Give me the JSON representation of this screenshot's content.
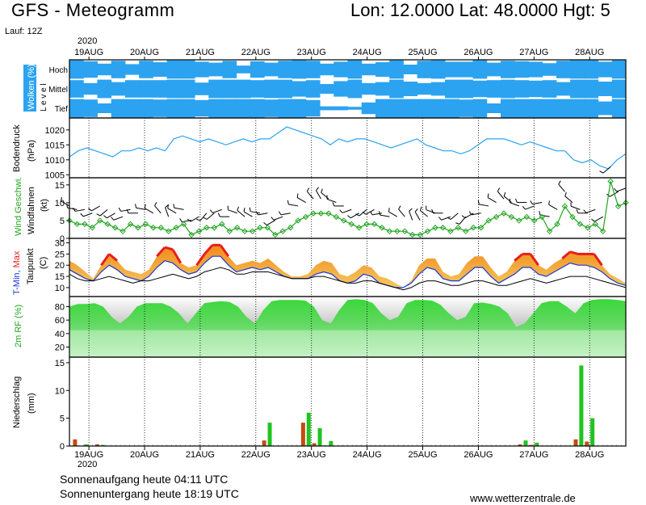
{
  "header": {
    "title": "GFS - Meteogramm",
    "location": "Lon: 12.0000 Lat: 48.0000 Hgt: 5",
    "run": "Lauf: 12Z"
  },
  "footer": {
    "sunrise": "Sonnenaufgang heute 04:11 UTC",
    "sunset": "Sonnenuntergang heute 18:19 UTC",
    "website": "www.wetterzentrale.de"
  },
  "colors": {
    "clouds": "#2ba3f0",
    "pressure_line": "#2ba3f0",
    "wind_speed": "#1fa51f",
    "wind_barb": "#000000",
    "temp_fill_top": "#f08a1a",
    "temp_fill_bottom": "#f5c860",
    "temp_max": "#e81d1d",
    "temp_min": "#1a35d8",
    "dewpoint": "#000000",
    "rh_fill": "#19d219",
    "precip_bar_green": "#1fc41f",
    "precip_bar_red": "#c54a12"
  },
  "chart_data": [
    {
      "type": "area",
      "panel": "clouds",
      "ylabel": "Wolken (%)",
      "ylabel2": "L e v e l",
      "levels": [
        "Hoch",
        "Mittel",
        "Tief"
      ],
      "year": "2020",
      "dates": [
        "19AUG",
        "20AUG",
        "21AUG",
        "22AUG",
        "23AUG",
        "24AUG",
        "25AUG",
        "26AUG",
        "27AUG",
        "28AUG"
      ],
      "cover_hoch": [
        95,
        85,
        60,
        90,
        55,
        90,
        75,
        95,
        95,
        80,
        70,
        90,
        40,
        85,
        70,
        90,
        95,
        90,
        60,
        80,
        95,
        60,
        75,
        95,
        50,
        90,
        95,
        80,
        80,
        95,
        70,
        90,
        85,
        80,
        65,
        90,
        95,
        95,
        80,
        95
      ],
      "cover_mittel": [
        90,
        60,
        95,
        70,
        90,
        90,
        90,
        95,
        95,
        65,
        95,
        95,
        95,
        90,
        95,
        95,
        80,
        90,
        50,
        80,
        95,
        60,
        70,
        95,
        75,
        60,
        70,
        95,
        95,
        85,
        90,
        95,
        90,
        85,
        90,
        70,
        95,
        95,
        75,
        95
      ],
      "cover_tief": [
        95,
        90,
        50,
        95,
        95,
        95,
        90,
        95,
        95,
        85,
        95,
        95,
        95,
        95,
        90,
        95,
        95,
        85,
        20,
        20,
        15,
        60,
        95,
        95,
        95,
        95,
        95,
        95,
        90,
        95,
        50,
        95,
        95,
        95,
        95,
        95,
        95,
        95,
        70,
        95
      ]
    },
    {
      "type": "line",
      "panel": "pressure",
      "ylabel": "Bodendruck",
      "yunit": "(hPa)",
      "ylim": [
        1004,
        1024
      ],
      "yticks": [
        1005,
        1010,
        1015,
        1020
      ],
      "values": [
        1011,
        1013,
        1014,
        1013,
        1012,
        1011,
        1013,
        1013,
        1014,
        1013,
        1014,
        1013,
        1017,
        1018,
        1017,
        1016,
        1017,
        1016,
        1015,
        1016,
        1017,
        1016,
        1017,
        1017,
        1019,
        1021,
        1020,
        1019,
        1018,
        1017,
        1015,
        1017,
        1016,
        1017,
        1017,
        1016,
        1015,
        1014,
        1015,
        1016,
        1017,
        1015,
        1014,
        1013,
        1013,
        1012,
        1013,
        1015,
        1017,
        1017,
        1017,
        1016,
        1015,
        1016,
        1015,
        1014,
        1013,
        1013,
        1010,
        1009,
        1010,
        1008,
        1007,
        1010,
        1012
      ]
    },
    {
      "type": "line",
      "panel": "wind",
      "ylabel": "Wind Geschwi.",
      "ylabel2": "Windfahnen",
      "yunit": "(kt)",
      "ylim": [
        0,
        17
      ],
      "yticks": [
        0,
        5,
        10,
        15
      ],
      "values": [
        5,
        4,
        4,
        3,
        5,
        4,
        3,
        2,
        4,
        3,
        4,
        3,
        3,
        2,
        3,
        4,
        1,
        2,
        3,
        3,
        4,
        2,
        3,
        2,
        2,
        3,
        3,
        1,
        2,
        3,
        5,
        6,
        7,
        7,
        7,
        6,
        5,
        4,
        3,
        4,
        4,
        3,
        2,
        2,
        2,
        1,
        1,
        2,
        3,
        3,
        2,
        3,
        2,
        3,
        3,
        5,
        6,
        7,
        6,
        5,
        6,
        5,
        6,
        2,
        4,
        9,
        6,
        4,
        3,
        4,
        2,
        16,
        9,
        10
      ],
      "wind_dir_deg": [
        300,
        280,
        260,
        250,
        240,
        230,
        240,
        250,
        260,
        270,
        280,
        300,
        320,
        340,
        300,
        280,
        260,
        240,
        220,
        230,
        250,
        270,
        290,
        310,
        300,
        280,
        260,
        240,
        250,
        260,
        280,
        300,
        320,
        330,
        310,
        290,
        270,
        250,
        240,
        230,
        240,
        260,
        280,
        300,
        320,
        340,
        330,
        310,
        290,
        270,
        250,
        230,
        220,
        240,
        260,
        280,
        300,
        320,
        310,
        290,
        270,
        250,
        260,
        280,
        300,
        320,
        310,
        290,
        270,
        250,
        240,
        230,
        240,
        250
      ]
    },
    {
      "type": "area",
      "panel": "temperature",
      "ylabel": "T-Min, Max",
      "ylabel2": "Taupunkt",
      "yunit": "(C)",
      "ylim": [
        6,
        32
      ],
      "yticks": [
        10,
        15,
        20,
        25,
        30
      ],
      "series": [
        {
          "name": "Max",
          "values": [
            22,
            20,
            17,
            14,
            20,
            25,
            22,
            18,
            17,
            16,
            18,
            24,
            28,
            27,
            21,
            19,
            20,
            25,
            29,
            29,
            24,
            20,
            21,
            22,
            21,
            23,
            20,
            17,
            15,
            15,
            16,
            20,
            22,
            21,
            16,
            15,
            17,
            20,
            19,
            15,
            14,
            12,
            10,
            13,
            20,
            23,
            23,
            17,
            15,
            16,
            21,
            24,
            24,
            19,
            15,
            17,
            22,
            25,
            25,
            20,
            18,
            21,
            23,
            26,
            25,
            25,
            25,
            20,
            16,
            14,
            12
          ]
        },
        {
          "name": "Min",
          "values": [
            18,
            16,
            14,
            13,
            17,
            20,
            18,
            15,
            14,
            13,
            15,
            19,
            22,
            21,
            18,
            16,
            17,
            21,
            24,
            24,
            20,
            17,
            18,
            19,
            18,
            19,
            17,
            15,
            14,
            14,
            14,
            16,
            17,
            16,
            13,
            12,
            13,
            16,
            15,
            12,
            11,
            10,
            10,
            12,
            16,
            19,
            18,
            14,
            13,
            13,
            16,
            19,
            19,
            15,
            12,
            14,
            16,
            19,
            19,
            16,
            15,
            17,
            19,
            21,
            20,
            20,
            19,
            17,
            14,
            12,
            11
          ]
        },
        {
          "name": "Taupunkt",
          "values": [
            16,
            14,
            13,
            13,
            14,
            15,
            14,
            13,
            12,
            13,
            13,
            14,
            15,
            16,
            15,
            14,
            15,
            17,
            18,
            19,
            18,
            16,
            16,
            17,
            17,
            17,
            16,
            15,
            14,
            14,
            14,
            15,
            15,
            14,
            13,
            12,
            12,
            13,
            13,
            12,
            11,
            10,
            9,
            10,
            12,
            13,
            13,
            12,
            11,
            11,
            12,
            13,
            13,
            12,
            11,
            11,
            12,
            13,
            14,
            13,
            12,
            13,
            14,
            15,
            15,
            15,
            14,
            13,
            12,
            11,
            10
          ]
        }
      ]
    },
    {
      "type": "area",
      "panel": "humidity",
      "ylabel": "2m RF (%)",
      "ylim": [
        5,
        95
      ],
      "yticks": [
        20,
        40,
        60,
        80
      ],
      "values": [
        80,
        84,
        84,
        85,
        80,
        65,
        55,
        65,
        80,
        85,
        85,
        85,
        80,
        70,
        55,
        70,
        85,
        87,
        88,
        87,
        80,
        65,
        55,
        75,
        88,
        90,
        90,
        90,
        89,
        80,
        60,
        55,
        75,
        90,
        91,
        90,
        85,
        70,
        60,
        65,
        85,
        90,
        90,
        89,
        83,
        70,
        60,
        65,
        85,
        86,
        84,
        80,
        70,
        50,
        55,
        70,
        85,
        88,
        88,
        80,
        70,
        85,
        90,
        91,
        91,
        90,
        88
      ]
    },
    {
      "type": "bar",
      "panel": "precipitation",
      "ylabel": "Niederschlag",
      "yunit": "(mm)",
      "ylim": [
        0,
        16
      ],
      "yticks": [
        0,
        5,
        10,
        15
      ],
      "dates_bottom": [
        "19AUG",
        "20AUG",
        "21AUG",
        "22AUG",
        "23AUG",
        "24AUG",
        "25AUG",
        "26AUG",
        "27AUG",
        "28AUG"
      ],
      "year_bottom": "2020",
      "series": [
        {
          "name": "green",
          "x": [
            0.3,
            0.6,
            3.2,
            3.4,
            3.6,
            4.3,
            4.5,
            4.7,
            8.2,
            8.4,
            9.2,
            9.4
          ],
          "values": [
            0.3,
            0.2,
            0.1,
            0.1,
            4.2,
            6.0,
            3.2,
            0.9,
            1.0,
            0.6,
            14.5,
            5.0
          ]
        },
        {
          "name": "red",
          "x": [
            0.1,
            0.5,
            3.1,
            3.3,
            3.5,
            4.2,
            4.4,
            4.6,
            8.1,
            8.3,
            9.1,
            9.3
          ],
          "values": [
            1.2,
            0.3,
            0.1,
            0.1,
            1.0,
            4.2,
            0.5,
            0.1,
            0.3,
            0.2,
            1.2,
            0.8
          ]
        }
      ]
    }
  ]
}
